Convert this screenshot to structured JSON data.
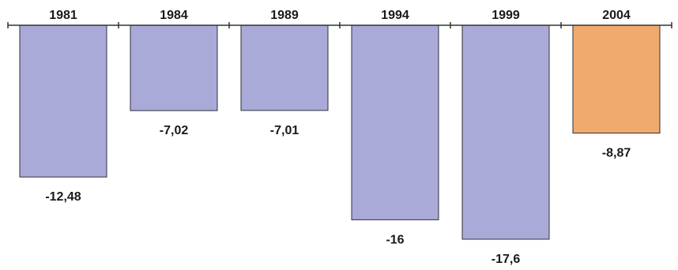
{
  "chart_data": {
    "type": "bar",
    "categories": [
      "1981",
      "1984",
      "1989",
      "1994",
      "1999",
      "2004"
    ],
    "values": [
      -12.48,
      -7.02,
      -7.01,
      -16,
      -17.6,
      -8.87
    ],
    "value_labels": [
      "-12,48",
      "-7,02",
      "-7,01",
      "-16",
      "-17,6",
      "-8,87"
    ],
    "title": "",
    "xlabel": "",
    "ylabel": "",
    "ylim": [
      -17.6,
      0
    ],
    "grid": false,
    "category_label_position": "top",
    "colors": {
      "default": "#aaaad8",
      "highlight": "#f0aa6e",
      "axis": "#333333"
    },
    "highlight_index": 5
  }
}
